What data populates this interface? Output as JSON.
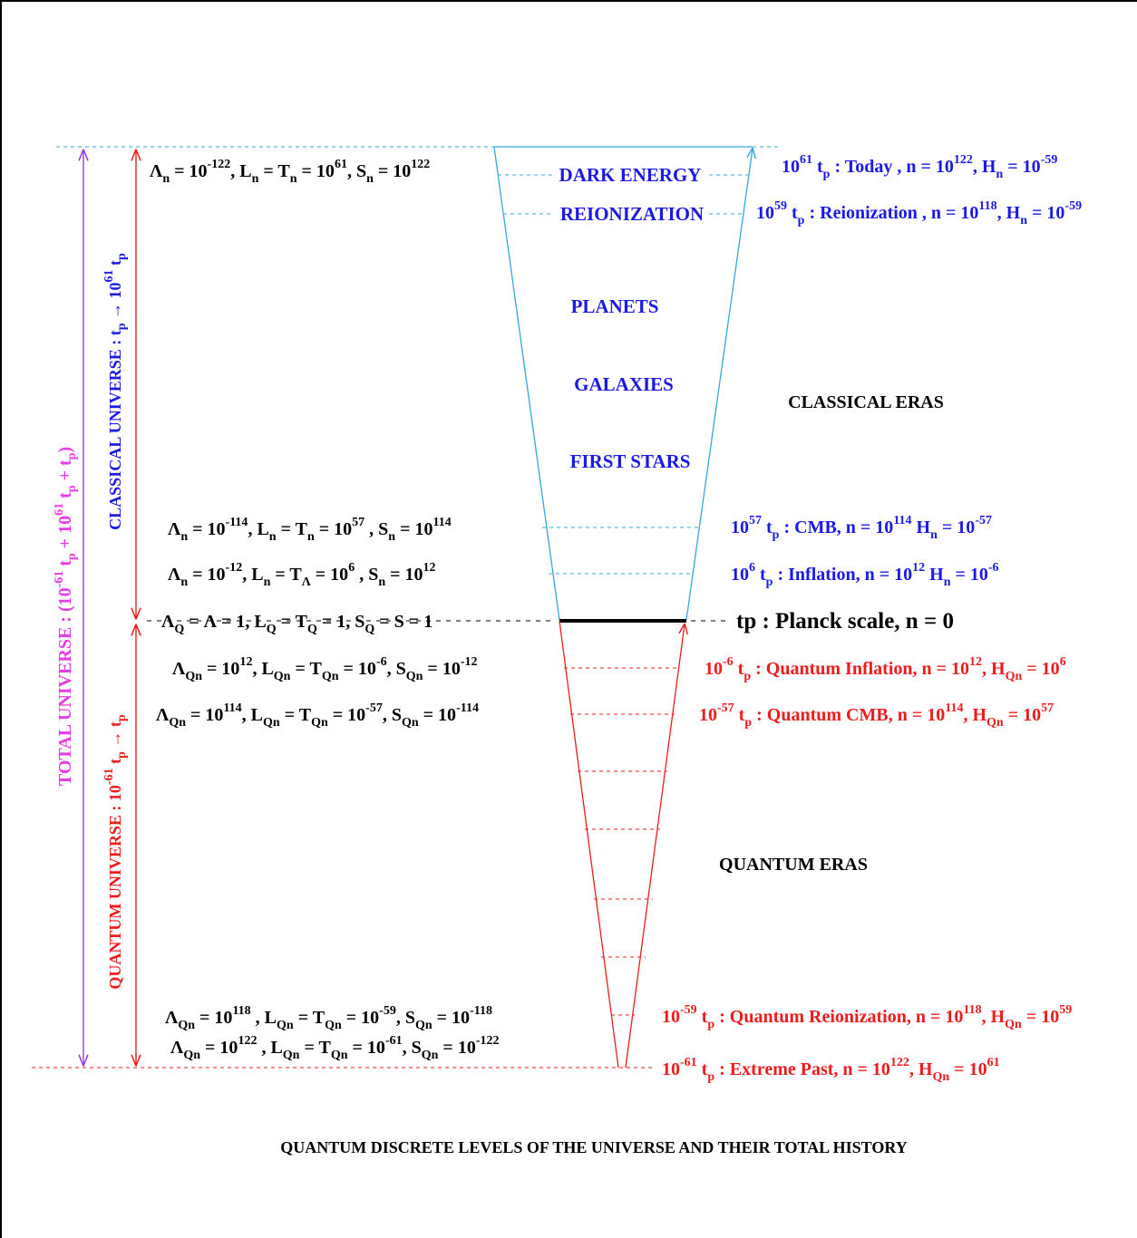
{
  "colors": {
    "classical_text": "#1a1ae6",
    "quantum_text": "#ee1c1c",
    "classical_lines": "#3aa6d8",
    "total_universe": "#e83be8",
    "total_arrow": "#9a3be0",
    "black": "#000000"
  },
  "cone_labels": {
    "dark_energy": "DARK ENERGY",
    "reionization": "REIONIZATION",
    "planets": "PLANETS",
    "galaxies": "GALAXIES",
    "first_stars": "FIRST STARS"
  },
  "era_labels": {
    "classical": "CLASSICAL  ERAS",
    "quantum": "QUANTUM  ERAS"
  },
  "planck": "tp : Planck scale, n = 0",
  "caption": "QUANTUM DISCRETE LEVELS OF THE UNIVERSE AND THEIR TOTAL HISTORY",
  "vertical_labels": {
    "total": "TOTAL   UNIVERSE  :   (10-61 tp + 1061 tp + tp)",
    "classical": "CLASSICAL UNIVERSE : tp → 1061 tp",
    "quantum": "QUANTUM UNIVERSE : 10-61 tp → tp"
  },
  "classical_levels": [
    {
      "left": "Λn = 10-122, Ln = Tn = 1061, Sn = 10122",
      "right": "1061 tp : Today , n = 10122, Hn = 10-59"
    },
    {
      "left": "",
      "right": "1059 tp : Reionization ,  n = 10118, Hn = 10-59"
    },
    {
      "left": "Λn = 10-114, Ln = Tn = 1057 , Sn = 10114",
      "right": "1057 tp : CMB, n = 10114  Hn = 10-57"
    },
    {
      "left": "Λn = 10-12, Ln = TΛ = 106 , Sn = 1012",
      "right": "106 tp : Inflation, n = 1012 Hn = 10-6"
    }
  ],
  "planck_left": "ΛQ = Λ = 1, LQ = TQ = 1,  SQ = S = 1",
  "quantum_levels": [
    {
      "left": "ΛQn = 1012,  LQn = TQn = 10-6, SQn = 10-12",
      "right": "10-6 tp : Quantum Inflation, n = 1012, HQn = 106"
    },
    {
      "left": "ΛQn = 10114, LQn = TQn = 10-57, SQn = 10-114",
      "right": "10-57 tp : Quantum CMB, n = 10114, HQn = 1057"
    },
    {
      "left": "ΛQn = 10118 , LQn = TQn = 10-59,   SQn = 10-118",
      "right": "10-59 tp : Quantum Reionization, n = 10118, HQn = 1059"
    },
    {
      "left": "ΛQn = 10122 , LQn = TQn = 10-61,   SQn = 10-122",
      "right": "10-61 tp : Extreme Past,  n = 10122,  HQn = 1061"
    }
  ]
}
